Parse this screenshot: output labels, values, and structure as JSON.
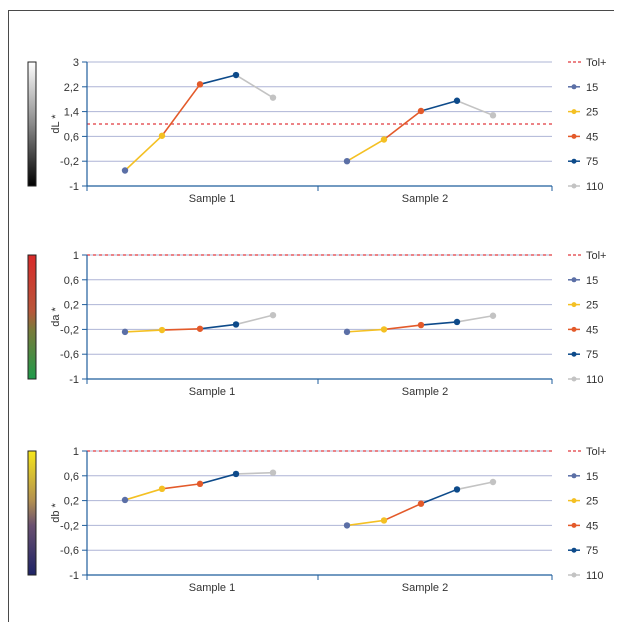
{
  "colors": {
    "axis": "#1f5e9c",
    "grid": "#aeb4d6",
    "tol": "#e0393e",
    "s15": "#5b6fa6",
    "s25": "#f4c023",
    "s45": "#e35a2a",
    "s75": "#0d4a8a",
    "s110": "#c3c3c3"
  },
  "legend": [
    "Tol+",
    "15",
    "25",
    "45",
    "75",
    "110"
  ],
  "chart_data": [
    {
      "type": "line",
      "ylabel": "dL*",
      "ylim": [
        -1,
        3
      ],
      "yticks": [
        "3",
        "2,2",
        "1,4",
        "0,6",
        "-0,2",
        "-1"
      ],
      "tolerance": 1.0,
      "categories": [
        "Sample 1",
        "Sample 2"
      ],
      "angles": [
        "15",
        "25",
        "45",
        "75",
        "110"
      ],
      "values": [
        [
          -0.5,
          0.62,
          2.28,
          2.58,
          1.85
        ],
        [
          -0.2,
          0.5,
          1.42,
          1.75,
          1.28
        ]
      ]
    },
    {
      "type": "line",
      "ylabel": "da*",
      "ylim": [
        -1,
        1
      ],
      "yticks": [
        "1",
        "0,6",
        "0,2",
        "-0,2",
        "-0,6",
        "-1"
      ],
      "tolerance": 1.0,
      "categories": [
        "Sample 1",
        "Sample 2"
      ],
      "angles": [
        "15",
        "25",
        "45",
        "75",
        "110"
      ],
      "values": [
        [
          -0.24,
          -0.21,
          -0.19,
          -0.12,
          0.03
        ],
        [
          -0.24,
          -0.2,
          -0.13,
          -0.08,
          0.02
        ]
      ]
    },
    {
      "type": "line",
      "ylabel": "db*",
      "ylim": [
        -1,
        1
      ],
      "yticks": [
        "1",
        "0,6",
        "0,2",
        "-0,2",
        "-0,6",
        "-1"
      ],
      "tolerance": 1.0,
      "categories": [
        "Sample 1",
        "Sample 2"
      ],
      "angles": [
        "15",
        "25",
        "45",
        "75",
        "110"
      ],
      "values": [
        [
          0.21,
          0.39,
          0.47,
          0.63,
          0.65
        ],
        [
          -0.2,
          -0.12,
          0.15,
          0.38,
          0.5
        ]
      ]
    }
  ]
}
